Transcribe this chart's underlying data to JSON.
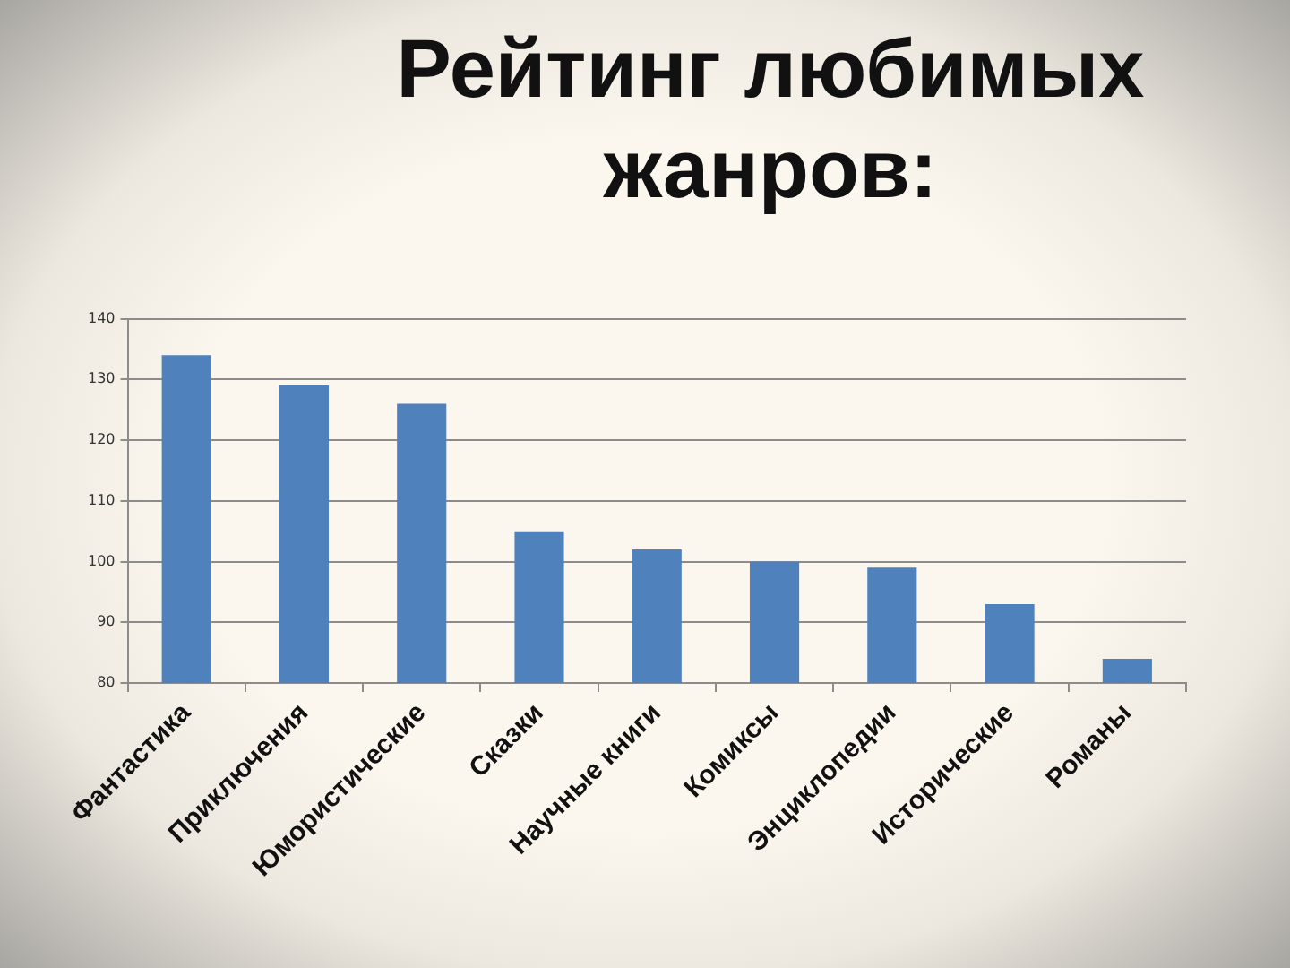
{
  "chart_data": {
    "type": "bar",
    "title": "Рейтинг любимых жанров:",
    "categories": [
      "Фантастика",
      "Приключения",
      "Юмористические",
      "Сказки",
      "Научные книги",
      "Комиксы",
      "Энциклопедии",
      "Исторические",
      "Романы"
    ],
    "values": [
      134,
      129,
      126,
      105,
      102,
      100,
      99,
      93,
      84
    ],
    "color": "#4f81bd",
    "ylim": [
      80,
      140
    ],
    "yticks": [
      80,
      90,
      100,
      110,
      120,
      130,
      140
    ],
    "grid": "y"
  }
}
